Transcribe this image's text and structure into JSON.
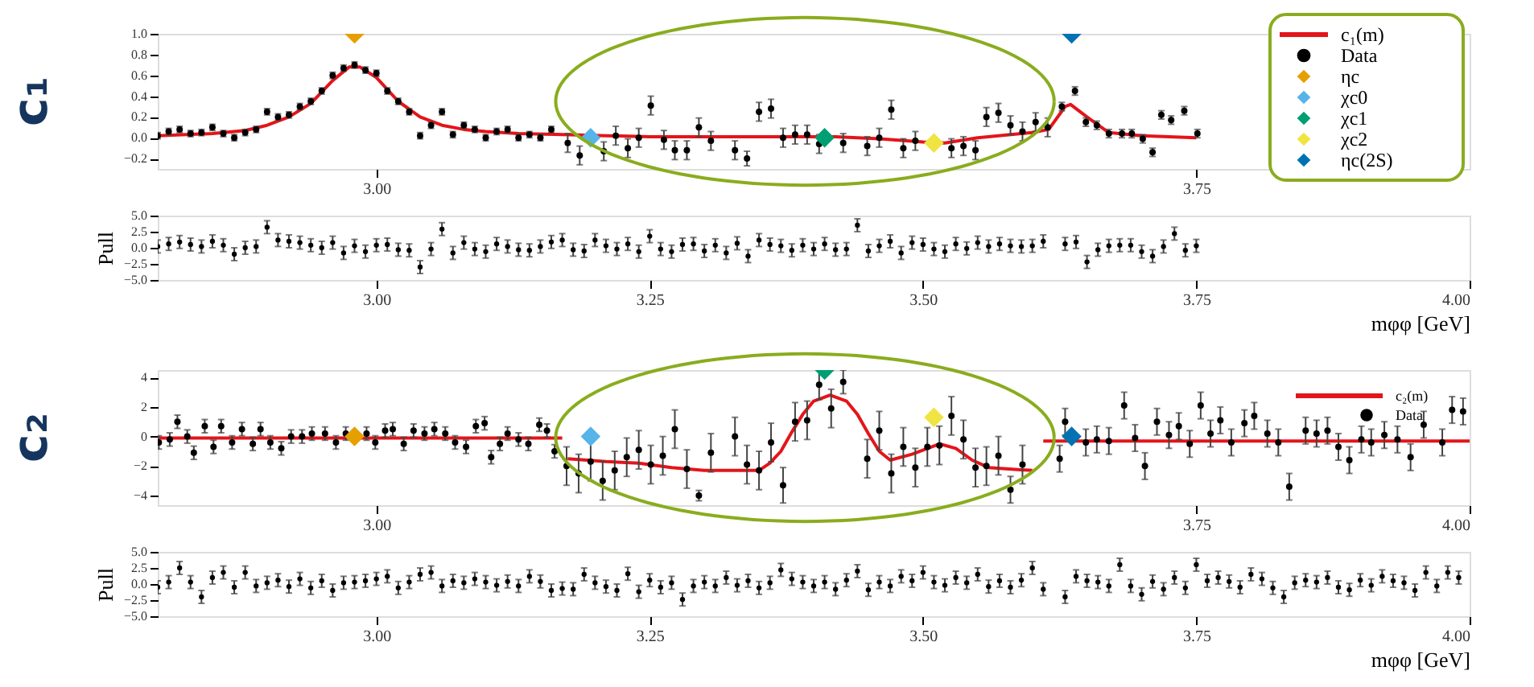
{
  "chart_data": [
    {
      "type": "scatter",
      "annotations": [
        "c₁"
      ],
      "legend": "top right",
      "xlim": [
        2.8,
        4.0
      ],
      "xticks": [
        {
          "value": 3.0,
          "label": "3.00"
        },
        {
          "value": 3.75,
          "label": "3.75"
        }
      ],
      "ylim": [
        -0.3,
        1.0
      ],
      "yticks": [
        {
          "value": 1.0,
          "label": "1.0"
        },
        {
          "value": 0.8,
          "label": "0.8"
        },
        {
          "value": 0.6,
          "label": "0.6"
        },
        {
          "value": 0.4,
          "label": "0.4"
        },
        {
          "value": 0.2,
          "label": "0.2"
        },
        {
          "value": 0.0,
          "label": "0.0"
        },
        {
          "value": -0.2,
          "label": "−0.2"
        }
      ],
      "series": [
        {
          "name": "c₁(m)",
          "type": "line",
          "color": "#e3151a",
          "x": [
            2.8,
            2.85,
            2.88,
            2.9,
            2.92,
            2.94,
            2.96,
            2.975,
            2.985,
            3.0,
            3.02,
            3.04,
            3.06,
            3.08,
            3.1,
            3.13,
            3.17,
            3.25,
            3.35,
            3.42,
            3.46,
            3.5,
            3.52,
            3.55,
            3.6,
            3.615,
            3.63,
            3.635,
            3.65,
            3.67,
            3.7,
            3.75
          ],
          "values": [
            0.02,
            0.04,
            0.07,
            0.12,
            0.2,
            0.33,
            0.55,
            0.68,
            0.68,
            0.58,
            0.35,
            0.2,
            0.12,
            0.08,
            0.06,
            0.04,
            0.03,
            0.01,
            0.01,
            0.01,
            -0.01,
            -0.04,
            -0.05,
            0.0,
            0.05,
            0.08,
            0.3,
            0.32,
            0.2,
            0.05,
            0.02,
            0.0
          ]
        },
        {
          "name": "Data",
          "marker": "circle",
          "color": "#000000",
          "x": [
            2.8,
            2.81,
            2.82,
            2.83,
            2.84,
            2.85,
            2.86,
            2.87,
            2.88,
            2.89,
            2.9,
            2.91,
            2.92,
            2.93,
            2.94,
            2.95,
            2.96,
            2.97,
            2.98,
            2.99,
            3.0,
            3.01,
            3.02,
            3.03,
            3.04,
            3.05,
            3.06,
            3.07,
            3.08,
            3.09,
            3.1,
            3.11,
            3.12,
            3.13,
            3.14,
            3.15,
            3.16,
            3.175,
            3.186,
            3.208,
            3.219,
            3.23,
            3.24,
            3.251,
            3.263,
            3.273,
            3.284,
            3.295,
            3.306,
            3.328,
            3.339,
            3.35,
            3.361,
            3.372,
            3.383,
            3.394,
            3.405,
            3.427,
            3.449,
            3.46,
            3.471,
            3.482,
            3.493,
            3.526,
            3.537,
            3.548,
            3.558,
            3.569,
            3.58,
            3.591,
            3.603,
            3.614,
            3.627,
            3.639,
            3.649,
            3.659,
            3.67,
            3.682,
            3.691,
            3.701,
            3.71,
            3.718,
            3.727,
            3.739,
            3.751
          ],
          "values": [
            0.02,
            0.06,
            0.08,
            0.04,
            0.05,
            0.1,
            0.04,
            0.0,
            0.05,
            0.08,
            0.25,
            0.2,
            0.22,
            0.3,
            0.35,
            0.45,
            0.6,
            0.67,
            0.7,
            0.65,
            0.62,
            0.45,
            0.35,
            0.25,
            0.02,
            0.12,
            0.25,
            0.03,
            0.12,
            0.08,
            0.0,
            0.06,
            0.08,
            0.0,
            0.03,
            0.0,
            0.08,
            -0.05,
            -0.17,
            -0.13,
            0.02,
            -0.1,
            0.0,
            0.31,
            -0.02,
            -0.12,
            -0.12,
            0.1,
            -0.03,
            -0.12,
            -0.2,
            0.25,
            0.28,
            0.0,
            0.03,
            0.03,
            -0.06,
            -0.05,
            -0.08,
            0.0,
            0.27,
            -0.1,
            -0.03,
            -0.1,
            -0.08,
            -0.12,
            0.2,
            0.24,
            0.12,
            0.06,
            0.15,
            0.1,
            0.3,
            0.45,
            0.15,
            0.12,
            0.04,
            0.04,
            0.04,
            -0.01,
            -0.14,
            0.22,
            0.17,
            0.26,
            0.04
          ],
          "errors": [
            0.03,
            0.03,
            0.03,
            0.03,
            0.03,
            0.03,
            0.03,
            0.03,
            0.03,
            0.03,
            0.03,
            0.03,
            0.03,
            0.03,
            0.03,
            0.03,
            0.03,
            0.03,
            0.03,
            0.03,
            0.03,
            0.03,
            0.03,
            0.03,
            0.03,
            0.03,
            0.03,
            0.03,
            0.03,
            0.03,
            0.03,
            0.03,
            0.03,
            0.03,
            0.03,
            0.03,
            0.03,
            0.09,
            0.09,
            0.09,
            0.09,
            0.09,
            0.09,
            0.09,
            0.09,
            0.09,
            0.09,
            0.09,
            0.09,
            0.09,
            0.07,
            0.09,
            0.09,
            0.09,
            0.09,
            0.09,
            0.09,
            0.09,
            0.09,
            0.09,
            0.09,
            0.09,
            0.09,
            0.09,
            0.09,
            0.09,
            0.09,
            0.09,
            0.09,
            0.09,
            0.09,
            0.09,
            0.04,
            0.04,
            0.04,
            0.04,
            0.04,
            0.04,
            0.04,
            0.04,
            0.04,
            0.04,
            0.04,
            0.04,
            0.04
          ]
        },
        {
          "name": "ηc",
          "marker": "diamond",
          "color": "#e69f00",
          "x": [
            2.98
          ],
          "values": [
            1.0
          ]
        },
        {
          "name": "χc0",
          "marker": "diamond",
          "color": "#56b4e9",
          "x": [
            3.196
          ],
          "values": [
            0.0
          ]
        },
        {
          "name": "χc1",
          "marker": "diamond",
          "color": "#009e73",
          "x": [
            3.41
          ],
          "values": [
            0.0
          ]
        },
        {
          "name": "χc2",
          "marker": "diamond",
          "color": "#f0e442",
          "x": [
            3.51
          ],
          "values": [
            -0.05
          ]
        },
        {
          "name": "ηc(2S)",
          "marker": "diamond",
          "color": "#0072b2",
          "x": [
            3.636
          ],
          "values": [
            1.0
          ]
        }
      ]
    },
    {
      "type": "scatter",
      "ylabel": "Pull",
      "xlabel": "mφφ [GeV]",
      "xlim": [
        2.8,
        4.0
      ],
      "xticks": [
        {
          "value": 3.0,
          "label": "3.00"
        },
        {
          "value": 3.25,
          "label": "3.25"
        },
        {
          "value": 3.5,
          "label": "3.50"
        },
        {
          "value": 3.75,
          "label": "3.75"
        },
        {
          "value": 4.0,
          "label": "4.00"
        }
      ],
      "ylim": [
        -5,
        5
      ],
      "yticks": [
        {
          "value": 5,
          "label": "5.0"
        },
        {
          "value": 2.5,
          "label": "2.5"
        },
        {
          "value": 0,
          "label": "0.0"
        },
        {
          "value": -2.5,
          "label": "−2.5"
        },
        {
          "value": -5,
          "label": "−5.0"
        }
      ],
      "series": [
        {
          "marker": "circle",
          "color": "#000000",
          "x": [
            2.8,
            2.81,
            2.82,
            2.83,
            2.84,
            2.85,
            2.86,
            2.87,
            2.88,
            2.89,
            2.9,
            2.91,
            2.92,
            2.93,
            2.94,
            2.95,
            2.96,
            2.97,
            2.98,
            2.99,
            3.0,
            3.01,
            3.02,
            3.03,
            3.04,
            3.05,
            3.06,
            3.07,
            3.08,
            3.09,
            3.1,
            3.11,
            3.12,
            3.13,
            3.14,
            3.15,
            3.16,
            3.17,
            3.18,
            3.19,
            3.2,
            3.21,
            3.22,
            3.23,
            3.24,
            3.25,
            3.26,
            3.27,
            3.28,
            3.29,
            3.3,
            3.31,
            3.32,
            3.33,
            3.34,
            3.35,
            3.36,
            3.37,
            3.38,
            3.39,
            3.4,
            3.41,
            3.42,
            3.43,
            3.44,
            3.45,
            3.46,
            3.47,
            3.48,
            3.49,
            3.5,
            3.51,
            3.52,
            3.53,
            3.54,
            3.55,
            3.56,
            3.57,
            3.58,
            3.59,
            3.6,
            3.61,
            3.63,
            3.64,
            3.65,
            3.66,
            3.67,
            3.68,
            3.69,
            3.7,
            3.71,
            3.72,
            3.73,
            3.74,
            3.75
          ],
          "values": [
            0.2,
            0.6,
            0.9,
            0.5,
            0.2,
            1.0,
            0.4,
            -1.0,
            0.0,
            0.2,
            3.2,
            1.2,
            1.0,
            0.8,
            0.4,
            0.0,
            0.8,
            -0.8,
            0.3,
            -0.6,
            0.4,
            0.5,
            -0.3,
            -0.4,
            -3.0,
            -0.2,
            2.9,
            -0.8,
            0.8,
            -0.2,
            -0.6,
            0.6,
            0.2,
            -0.3,
            -0.4,
            0.2,
            0.9,
            1.2,
            -0.3,
            -0.5,
            1.2,
            0.3,
            -0.2,
            0.6,
            -0.6,
            1.8,
            -0.2,
            -0.6,
            0.5,
            0.6,
            -0.5,
            0.4,
            -0.8,
            0.7,
            -1.3,
            1.2,
            0.5,
            0.3,
            -0.4,
            0.4,
            -0.2,
            0.6,
            -0.3,
            -0.2,
            3.5,
            -0.5,
            0.3,
            1.0,
            -0.8,
            0.8,
            0.5,
            -0.2,
            -0.6,
            0.6,
            -0.1,
            0.8,
            0.2,
            0.6,
            0.3,
            0.2,
            0.3,
            1.0,
            0.6,
            0.9,
            -2.2,
            -0.3,
            0.3,
            0.4,
            0.4,
            -0.6,
            -1.3,
            0.2,
            2.2,
            -0.4,
            0.3
          ],
          "errors": [
            1,
            1,
            1,
            1,
            1,
            1,
            1,
            1,
            1,
            1,
            1,
            1,
            1,
            1,
            1,
            1,
            1,
            1,
            1,
            1,
            1,
            1,
            1,
            1,
            1,
            1,
            1,
            1,
            1,
            1,
            1,
            1,
            1,
            1,
            1,
            1,
            1,
            1,
            1,
            1,
            1,
            1,
            1,
            1,
            1,
            1,
            1,
            1,
            1,
            1,
            1,
            1,
            1,
            1,
            1,
            1,
            1,
            1,
            1,
            1,
            1,
            1,
            1,
            1,
            1,
            1,
            1,
            1,
            1,
            1,
            1,
            1,
            1,
            1,
            1,
            1,
            1,
            1,
            1,
            1,
            1,
            1,
            1,
            1,
            1,
            1,
            1,
            1,
            1,
            1,
            1,
            1,
            1,
            1,
            1
          ]
        }
      ]
    },
    {
      "type": "scatter",
      "annotations": [
        "c₂"
      ],
      "legend": "top right",
      "xlim": [
        2.8,
        4.0
      ],
      "xticks": [
        {
          "value": 3.0,
          "label": "3.00"
        },
        {
          "value": 3.75,
          "label": "3.75"
        },
        {
          "value": 4.0,
          "label": "4.00"
        }
      ],
      "ylim": [
        -4.65,
        4.5
      ],
      "yticks": [
        4,
        2,
        0,
        {
          "value": -2,
          "label": "−2"
        },
        {
          "value": -4,
          "label": "−4"
        }
      ],
      "series": [
        {
          "name": "c₂(m)",
          "type": "line",
          "color": "#e3151a",
          "x": [
            2.8,
            3.17,
            3.172,
            3.175,
            3.21,
            3.24,
            3.27,
            3.3,
            3.35,
            3.36,
            3.37,
            3.38,
            3.39,
            3.4,
            3.415,
            3.43,
            3.44,
            3.45,
            3.46,
            3.47,
            3.49,
            3.515,
            3.53,
            3.545,
            3.56,
            3.6,
            3.605,
            3.61,
            4.0
          ],
          "values": [
            -0.1,
            -0.1,
            null,
            -1.5,
            -1.7,
            -1.8,
            -2.1,
            -2.3,
            -2.3,
            -1.8,
            -1.0,
            0.3,
            1.5,
            2.4,
            2.8,
            2.4,
            1.5,
            0.2,
            -1.0,
            -1.6,
            -1.2,
            -0.5,
            -0.8,
            -1.6,
            -2.1,
            -2.3,
            null,
            -0.3,
            -0.3
          ]
        },
        {
          "name": "Data",
          "marker": "circle",
          "color": "#000000",
          "x": [
            2.801,
            2.811,
            2.818,
            2.827,
            2.833,
            2.843,
            2.851,
            2.858,
            2.868,
            2.877,
            2.887,
            2.894,
            2.903,
            2.913,
            2.922,
            2.932,
            2.941,
            2.953,
            2.963,
            2.972,
            2.991,
            2.999,
            3.008,
            3.015,
            3.025,
            3.034,
            3.044,
            3.053,
            3.063,
            3.072,
            3.082,
            3.091,
            3.099,
            3.105,
            3.113,
            3.12,
            3.13,
            3.139,
            3.149,
            3.156,
            3.163,
            3.174,
            3.185,
            3.196,
            3.207,
            3.218,
            3.229,
            3.24,
            3.251,
            3.262,
            3.273,
            3.284,
            3.295,
            3.306,
            3.328,
            3.339,
            3.35,
            3.361,
            3.372,
            3.383,
            3.394,
            3.405,
            3.416,
            3.427,
            3.449,
            3.46,
            3.471,
            3.482,
            3.493,
            3.504,
            3.515,
            3.526,
            3.537,
            3.548,
            3.558,
            3.569,
            3.58,
            3.591,
            3.625,
            3.63,
            3.649,
            3.659,
            3.67,
            3.684,
            3.694,
            3.703,
            3.714,
            3.725,
            3.734,
            3.744,
            3.754,
            3.763,
            3.772,
            3.782,
            3.794,
            3.803,
            3.815,
            3.825,
            3.835,
            3.85,
            3.86,
            3.87,
            3.88,
            3.89,
            3.901,
            3.91,
            3.922,
            3.934,
            3.946,
            3.958,
            3.975,
            3.984,
            3.994
          ],
          "values": [
            -0.4,
            -0.2,
            1.0,
            0,
            -1.1,
            0.7,
            -0.7,
            0.7,
            -0.4,
            0.5,
            -0.5,
            0.5,
            -0.4,
            -0.8,
            0,
            0,
            0.2,
            0.2,
            -0.4,
            0.2,
            0.2,
            -0.4,
            0.4,
            0.5,
            -0.5,
            0.4,
            0.2,
            0.5,
            0.2,
            -0.4,
            -0.7,
            0.7,
            0.9,
            -1.4,
            -0.5,
            0.2,
            -0.2,
            -0.5,
            0.8,
            0.4,
            -1.0,
            -2.0,
            -2.5,
            -1.7,
            -3.0,
            -2.3,
            -1.4,
            -0.9,
            -1.9,
            -1.3,
            0.5,
            -2.2,
            -4.0,
            -1.1,
            0.0,
            -1.9,
            -2.3,
            -0.4,
            -3.3,
            1.0,
            1.1,
            3.5,
            1.9,
            3.7,
            -1.5,
            0.4,
            -2.5,
            -0.7,
            -2.1,
            -0.7,
            -0.6,
            1.4,
            -0.2,
            -2.1,
            -2.0,
            -1.3,
            -3.6,
            -1.9,
            -1.5,
            1.0,
            -0.4,
            -0.2,
            -0.3,
            2.1,
            -0.1,
            -2.0,
            1.0,
            0.1,
            0.7,
            -0.5,
            2.1,
            0.2,
            1.1,
            -0.4,
            0.9,
            1.4,
            0.2,
            -0.4,
            -3.4,
            0.4,
            0.2,
            0.4,
            -0.7,
            -1.6,
            -0.2,
            -0.4,
            0.1,
            -0.2,
            -1.4,
            0.8,
            -0.4,
            1.8,
            1.7
          ],
          "errors": [
            0.45,
            0.45,
            0.45,
            0.45,
            0.45,
            0.45,
            0.45,
            0.45,
            0.45,
            0.45,
            0.45,
            0.45,
            0.45,
            0.45,
            0.45,
            0.45,
            0.45,
            0.45,
            0.45,
            0.45,
            0.45,
            0.45,
            0.45,
            0.45,
            0.45,
            0.45,
            0.45,
            0.45,
            0.45,
            0.45,
            0.45,
            0.45,
            0.45,
            0.45,
            0.45,
            0.45,
            0.45,
            0.45,
            0.45,
            0.45,
            0.45,
            1.3,
            1.3,
            1.3,
            1.3,
            1.3,
            1.3,
            1.3,
            1.3,
            1.3,
            1.3,
            1.3,
            0.35,
            1.3,
            1.3,
            1.3,
            1.3,
            1.3,
            1.2,
            1.3,
            1.3,
            1.0,
            1.3,
            0.8,
            1.3,
            1.3,
            1.3,
            1.3,
            1.3,
            1.3,
            1.3,
            1.3,
            1.3,
            1.3,
            1.3,
            1.3,
            0.9,
            1.3,
            0.9,
            0.9,
            0.9,
            0.9,
            0.9,
            0.9,
            0.9,
            0.9,
            0.9,
            0.9,
            0.9,
            0.9,
            0.9,
            0.9,
            0.9,
            0.9,
            0.9,
            0.9,
            0.9,
            0.9,
            0.9,
            0.9,
            0.9,
            0.9,
            0.9,
            0.9,
            0.9,
            0.9,
            0.9,
            0.9,
            0.9,
            0.9,
            0.9,
            0.9,
            0.9
          ]
        },
        {
          "marker": "diamond",
          "color": "#e69f00",
          "x": [
            2.98
          ],
          "values": [
            0.0
          ]
        },
        {
          "marker": "diamond",
          "color": "#56b4e9",
          "x": [
            3.196
          ],
          "values": [
            0.0
          ]
        },
        {
          "marker": "diamond",
          "color": "#009e73",
          "x": [
            3.41
          ],
          "values": [
            4.5
          ]
        },
        {
          "marker": "diamond",
          "color": "#f0e442",
          "x": [
            3.51
          ],
          "values": [
            1.3
          ]
        },
        {
          "marker": "diamond",
          "color": "#0072b2",
          "x": [
            3.636
          ],
          "values": [
            0.0
          ]
        }
      ]
    },
    {
      "type": "scatter",
      "ylabel": "Pull",
      "xlabel": "mφφ [GeV]",
      "xlim": [
        2.8,
        4.0
      ],
      "xticks": [
        {
          "value": 3.0,
          "label": "3.00"
        },
        {
          "value": 3.25,
          "label": "3.25"
        },
        {
          "value": 3.5,
          "label": "3.50"
        },
        {
          "value": 3.75,
          "label": "3.75"
        },
        {
          "value": 4.0,
          "label": "4.00"
        }
      ],
      "ylim": [
        -5,
        5
      ],
      "yticks": [
        {
          "value": 5,
          "label": "5.0"
        },
        {
          "value": 2.5,
          "label": "2.5"
        },
        {
          "value": 0,
          "label": "0.0"
        },
        {
          "value": -2.5,
          "label": "−2.5"
        },
        {
          "value": -5,
          "label": "−5.0"
        }
      ],
      "series": [
        {
          "marker": "circle",
          "color": "#000000",
          "x": [
            2.8,
            2.81,
            2.82,
            2.83,
            2.84,
            2.85,
            2.86,
            2.87,
            2.88,
            2.89,
            2.9,
            2.91,
            2.92,
            2.93,
            2.94,
            2.95,
            2.96,
            2.97,
            2.98,
            2.99,
            3.0,
            3.01,
            3.02,
            3.03,
            3.04,
            3.05,
            3.06,
            3.07,
            3.08,
            3.09,
            3.1,
            3.11,
            3.12,
            3.13,
            3.14,
            3.15,
            3.16,
            3.17,
            3.18,
            3.19,
            3.2,
            3.21,
            3.22,
            3.23,
            3.24,
            3.25,
            3.26,
            3.27,
            3.28,
            3.29,
            3.3,
            3.31,
            3.32,
            3.33,
            3.34,
            3.35,
            3.36,
            3.37,
            3.38,
            3.39,
            3.4,
            3.41,
            3.42,
            3.43,
            3.44,
            3.45,
            3.46,
            3.47,
            3.48,
            3.49,
            3.5,
            3.51,
            3.52,
            3.53,
            3.54,
            3.55,
            3.56,
            3.57,
            3.58,
            3.59,
            3.6,
            3.61,
            3.63,
            3.64,
            3.65,
            3.66,
            3.67,
            3.68,
            3.69,
            3.7,
            3.71,
            3.72,
            3.73,
            3.74,
            3.75,
            3.76,
            3.77,
            3.78,
            3.79,
            3.8,
            3.81,
            3.82,
            3.83,
            3.84,
            3.85,
            3.86,
            3.87,
            3.88,
            3.89,
            3.9,
            3.91,
            3.92,
            3.93,
            3.94,
            3.95,
            3.96,
            3.97,
            3.98,
            3.99
          ],
          "values": [
            -0.5,
            0.3,
            2.5,
            0.3,
            -2.0,
            1.0,
            1.8,
            -0.5,
            1.8,
            -0.3,
            0.2,
            0.6,
            -0.4,
            0.8,
            -0.6,
            0.5,
            -1.0,
            0.2,
            0.3,
            0.5,
            0.8,
            1.2,
            -0.6,
            0.3,
            1.5,
            1.8,
            -0.3,
            0.5,
            0.2,
            0.8,
            0.3,
            -0.2,
            0.4,
            -0.3,
            1.2,
            0.4,
            -1.0,
            -0.7,
            -0.8,
            1.5,
            0.2,
            -0.4,
            -1.0,
            1.6,
            -1.2,
            0.6,
            -0.5,
            0.2,
            -2.4,
            -0.3,
            0.3,
            -0.3,
            1.0,
            -0.2,
            0.5,
            -0.6,
            0.2,
            2.2,
            0.8,
            0.3,
            -0.3,
            0.3,
            -0.8,
            0.6,
            2.0,
            -0.9,
            0.3,
            -0.3,
            1.2,
            0.5,
            1.8,
            0.3,
            -0.2,
            1.0,
            0.2,
            1.5,
            -0.4,
            0.5,
            -0.5,
            0.6,
            2.5,
            -0.8,
            -2.0,
            1.2,
            0.5,
            0.3,
            -0.3,
            3.0,
            -0.3,
            -1.6,
            0.4,
            -0.8,
            1.0,
            -0.6,
            3.0,
            0.5,
            1.0,
            0.4,
            -0.5,
            1.5,
            0.8,
            -0.6,
            -2.0,
            0.2,
            0.6,
            0.3,
            1.0,
            -0.5,
            -0.9,
            0.6,
            -0.2,
            1.2,
            0.5,
            0.2,
            -1.0,
            1.8,
            -0.3,
            1.8,
            1.0
          ],
          "errors": [
            1,
            1,
            1,
            1,
            1,
            1,
            1,
            1,
            1,
            1,
            1,
            1,
            1,
            1,
            1,
            1,
            1,
            1,
            1,
            1,
            1,
            1,
            1,
            1,
            1,
            1,
            1,
            1,
            1,
            1,
            1,
            1,
            1,
            1,
            1,
            1,
            1,
            1,
            1,
            1,
            1,
            1,
            1,
            1,
            1,
            1,
            1,
            1,
            1,
            1,
            1,
            1,
            1,
            1,
            1,
            1,
            1,
            1,
            1,
            1,
            1,
            1,
            1,
            1,
            1,
            1,
            1,
            1,
            1,
            1,
            1,
            1,
            1,
            1,
            1,
            1,
            1,
            1,
            1,
            1,
            1,
            1,
            1,
            1,
            1,
            1,
            1,
            1,
            1,
            1,
            1,
            1,
            1,
            1,
            1,
            1,
            1,
            1,
            1,
            1,
            1,
            1,
            1,
            1,
            1,
            1,
            1,
            1,
            1,
            1,
            1,
            1,
            1,
            1,
            1,
            1,
            1,
            1,
            1
          ]
        }
      ]
    }
  ]
}
